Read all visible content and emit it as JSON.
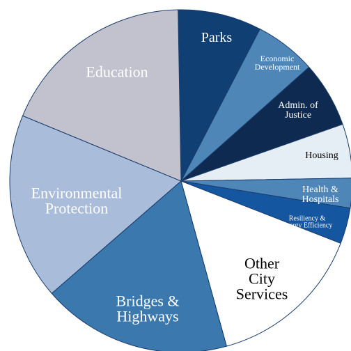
{
  "chart_data": {
    "type": "pie",
    "categories": [
      "Parks",
      "Economic\nDevelopment",
      "Admin. of\nJustice",
      "Housing",
      "Health &\nHospitals",
      "Resiliency &\nEnergy Efficiency",
      "Other\nCity\nServices",
      "Bridges &\nHighways",
      "Environmental\nProtection",
      "Education"
    ],
    "values": [
      7.9,
      5.8,
      6.2,
      5.1,
      2.8,
      3.4,
      14.8,
      17.9,
      17.6,
      18.5
    ],
    "colors": [
      "#0f3f73",
      "#4f86b8",
      "#0e2a50",
      "#e6eef5",
      "#4f86b8",
      "#1456a0",
      "#ffffff",
      "#3a78ad",
      "#a9bcd9",
      "#c2c2cf"
    ]
  }
}
